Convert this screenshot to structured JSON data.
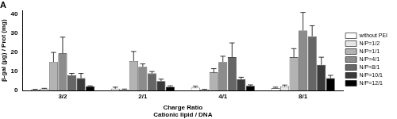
{
  "chart_data": {
    "type": "bar",
    "title": "A",
    "y_label": "β-gal (μg) / Prot (mg)",
    "x_label": "Charge Ratio\nCationic lipid / DNA",
    "categories": [
      "3/2",
      "2/1",
      "4/1",
      "8/1"
    ],
    "ylim": [
      0,
      42
    ],
    "yticks": [
      0,
      10,
      20,
      30,
      40
    ],
    "grid": false,
    "legend": "right",
    "series": [
      {
        "name": "without PEI",
        "color": "#ffffff",
        "values": [
          0.5,
          1.0,
          1.5,
          1.2
        ],
        "errors": [
          0.2,
          0.8,
          0.8,
          0.6
        ]
      },
      {
        "name": "N/P=1/2",
        "color": "#e6e6e6",
        "values": [
          1.0,
          0.5,
          0.5,
          2.2
        ],
        "errors": [
          0.2,
          0.3,
          0.2,
          0.7
        ]
      },
      {
        "name": "N/P=1/1",
        "color": "#b3b3b3",
        "values": [
          15,
          15.5,
          9.5,
          17.5
        ],
        "errors": [
          5,
          5,
          2,
          4.5
        ]
      },
      {
        "name": "N/P=4/1",
        "color": "#8c8c8c",
        "values": [
          19.5,
          12.5,
          15,
          31.5
        ],
        "errors": [
          8.5,
          1.5,
          3,
          9.5
        ]
      },
      {
        "name": "N/P=8/1",
        "color": "#666666",
        "values": [
          8,
          9,
          17.5,
          28.5
        ],
        "errors": [
          1,
          1,
          7.5,
          5.5
        ]
      },
      {
        "name": "N/P=10/1",
        "color": "#3a3a3a",
        "values": [
          6.5,
          5,
          6,
          13.5
        ],
        "errors": [
          2.5,
          1,
          1,
          4
        ]
      },
      {
        "name": "N/P=12/1",
        "color": "#000000",
        "values": [
          2.2,
          2,
          2.5,
          6.5
        ],
        "errors": [
          0.3,
          0.5,
          0.5,
          1.5
        ]
      }
    ]
  }
}
